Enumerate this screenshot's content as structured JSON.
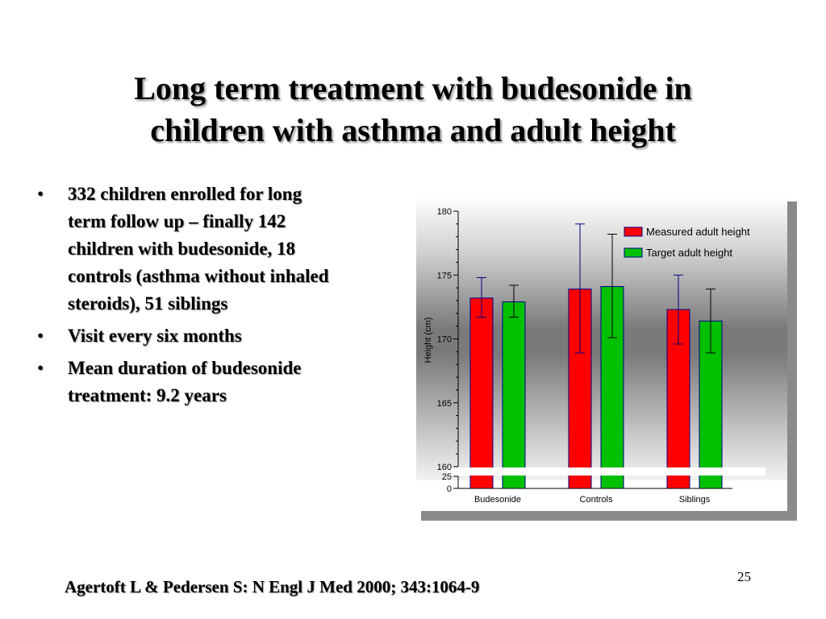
{
  "slide": {
    "title_lines": [
      "Long term treatment with budesonide in",
      "children with asthma and adult height"
    ],
    "bullets": [
      "332 children enrolled for long term follow up – finally 142 children with budesonide, 18 controls (asthma without inhaled steroids), 51 siblings",
      "Visit every six months",
      "Mean duration of budesonide treatment: 9.2 years"
    ],
    "bullet_char": "•",
    "citation": "Agertoft L & Pedersen S: N Engl J Med 2000; 343:1064-9",
    "page_number": "25"
  },
  "chart_data": {
    "type": "bar",
    "title": "",
    "xlabel": "",
    "ylabel": "Height (cm)",
    "categories": [
      "Budesonide",
      "Controls",
      "Siblings"
    ],
    "series": [
      {
        "name": "Measured adult height",
        "color": "#ff0000",
        "values": [
          173.2,
          173.9,
          172.3
        ],
        "err_high": [
          174.8,
          179.0,
          175.0
        ],
        "err_low": [
          171.7,
          168.9,
          169.6
        ]
      },
      {
        "name": "Target adult height",
        "color": "#00c000",
        "values": [
          172.9,
          174.1,
          171.4
        ],
        "err_high": [
          174.2,
          178.2,
          173.9
        ],
        "err_low": [
          171.7,
          170.1,
          168.9
        ]
      }
    ],
    "ylim": [
      160,
      180
    ],
    "yticks": [
      "160",
      "165",
      "170",
      "175",
      "180"
    ],
    "axis_break": {
      "lower_ticks": [
        "0",
        "25"
      ]
    },
    "grid": false,
    "legend": "top-right",
    "error_bar_color": "#000080",
    "axis_color": "#000000"
  }
}
